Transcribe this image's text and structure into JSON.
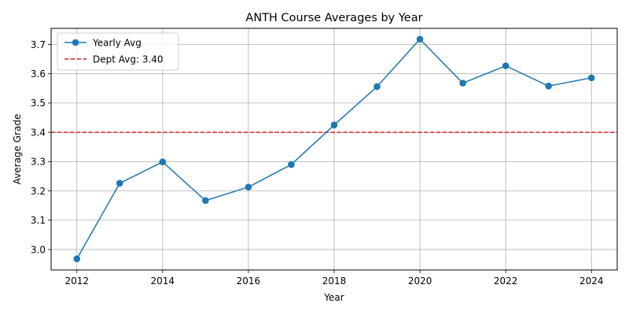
{
  "chart_data": {
    "type": "line",
    "title": "ANTH Course Averages by Year",
    "xlabel": "Year",
    "ylabel": "Average Grade",
    "xlim": [
      2011.4,
      2024.6
    ],
    "ylim": [
      2.93,
      3.755
    ],
    "xticks": [
      2012,
      2014,
      2016,
      2018,
      2020,
      2022,
      2024
    ],
    "yticks": [
      3.0,
      3.1,
      3.2,
      3.3,
      3.4,
      3.5,
      3.6,
      3.7
    ],
    "ytick_labels": [
      "3.0",
      "3.1",
      "3.2",
      "3.3",
      "3.4",
      "3.5",
      "3.6",
      "3.7"
    ],
    "grid": true,
    "legend_position": "top-left",
    "series": [
      {
        "name": "Yearly Avg",
        "color": "#1f77b4",
        "marker": "circle",
        "x": [
          2012,
          2013,
          2014,
          2015,
          2016,
          2017,
          2018,
          2019,
          2020,
          2021,
          2022,
          2023,
          2024
        ],
        "y": [
          2.968,
          3.226,
          3.299,
          3.167,
          3.213,
          3.29,
          3.425,
          3.556,
          3.718,
          3.568,
          3.627,
          3.558,
          3.586
        ]
      }
    ],
    "reference_lines": [
      {
        "name": "Dept Avg: 3.40",
        "y": 3.4,
        "color": "#d62728",
        "style": "dashed"
      }
    ]
  }
}
